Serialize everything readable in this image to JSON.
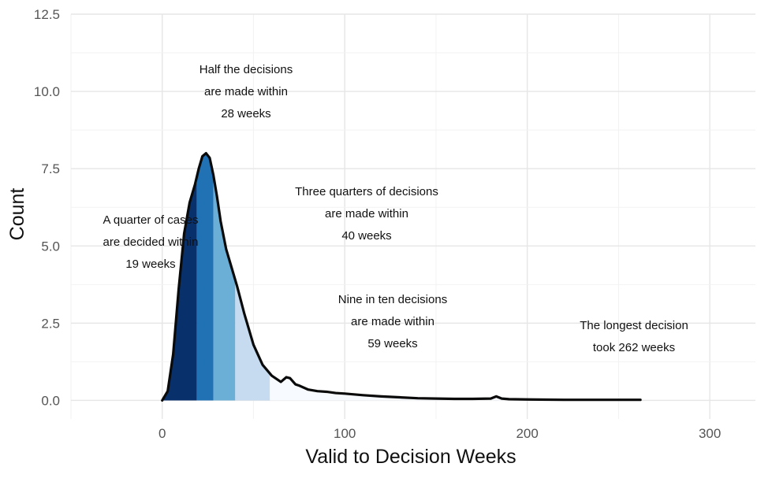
{
  "chart_data": {
    "type": "area",
    "title": "",
    "xlabel": "Valid to Decision Weeks",
    "ylabel": "Count",
    "xlim": [
      -50,
      325
    ],
    "ylim": [
      -0.6,
      12.5
    ],
    "x_ticks": [
      0,
      100,
      200,
      300
    ],
    "x_tick_labels": [
      "0",
      "100",
      "200",
      "300"
    ],
    "y_ticks": [
      0,
      2.5,
      5,
      7.5,
      10,
      12.5
    ],
    "y_tick_labels": [
      "0.0",
      "2.5",
      "5.0",
      "7.5",
      "10.0",
      "12.5"
    ],
    "grid": true,
    "legend": "none",
    "density": {
      "x": [
        0,
        3,
        6,
        9,
        12,
        15,
        18,
        20,
        22,
        24,
        26,
        28,
        30,
        32,
        35,
        38,
        41,
        45,
        50,
        55,
        60,
        65,
        68,
        70,
        73,
        75,
        80,
        85,
        90,
        95,
        100,
        110,
        120,
        130,
        140,
        150,
        160,
        170,
        180,
        183,
        186,
        190,
        200,
        220,
        240,
        262
      ],
      "y": [
        0,
        0.3,
        1.5,
        3.6,
        5.4,
        6.4,
        7.0,
        7.5,
        7.9,
        8.0,
        7.85,
        7.3,
        6.6,
        5.8,
        4.9,
        4.3,
        3.7,
        2.8,
        1.8,
        1.15,
        0.8,
        0.6,
        0.75,
        0.72,
        0.52,
        0.48,
        0.35,
        0.3,
        0.28,
        0.24,
        0.22,
        0.17,
        0.13,
        0.1,
        0.07,
        0.06,
        0.05,
        0.05,
        0.06,
        0.13,
        0.06,
        0.04,
        0.03,
        0.02,
        0.02,
        0.02
      ]
    },
    "bands": [
      {
        "from": 0,
        "to": 19,
        "color": "#08306b"
      },
      {
        "from": 19,
        "to": 28,
        "color": "#2171b5"
      },
      {
        "from": 28,
        "to": 40,
        "color": "#6baed6"
      },
      {
        "from": 40,
        "to": 59,
        "color": "#c6dbef"
      },
      {
        "from": 59,
        "to": 262,
        "color": "#f7fbff"
      }
    ],
    "annotations": [
      {
        "id": "q1",
        "lines": [
          "A quarter of cases",
          "are decided within",
          "19 weeks"
        ]
      },
      {
        "id": "median",
        "lines": [
          "Half the decisions",
          "are made within",
          "28 weeks"
        ]
      },
      {
        "id": "q3",
        "lines": [
          "Three quarters of decisions",
          "are made within",
          "40 weeks"
        ]
      },
      {
        "id": "p90",
        "lines": [
          "Nine in ten decisions",
          "are made within",
          "59 weeks"
        ]
      },
      {
        "id": "max",
        "lines": [
          "The longest decision",
          "took 262 weeks"
        ]
      }
    ]
  }
}
